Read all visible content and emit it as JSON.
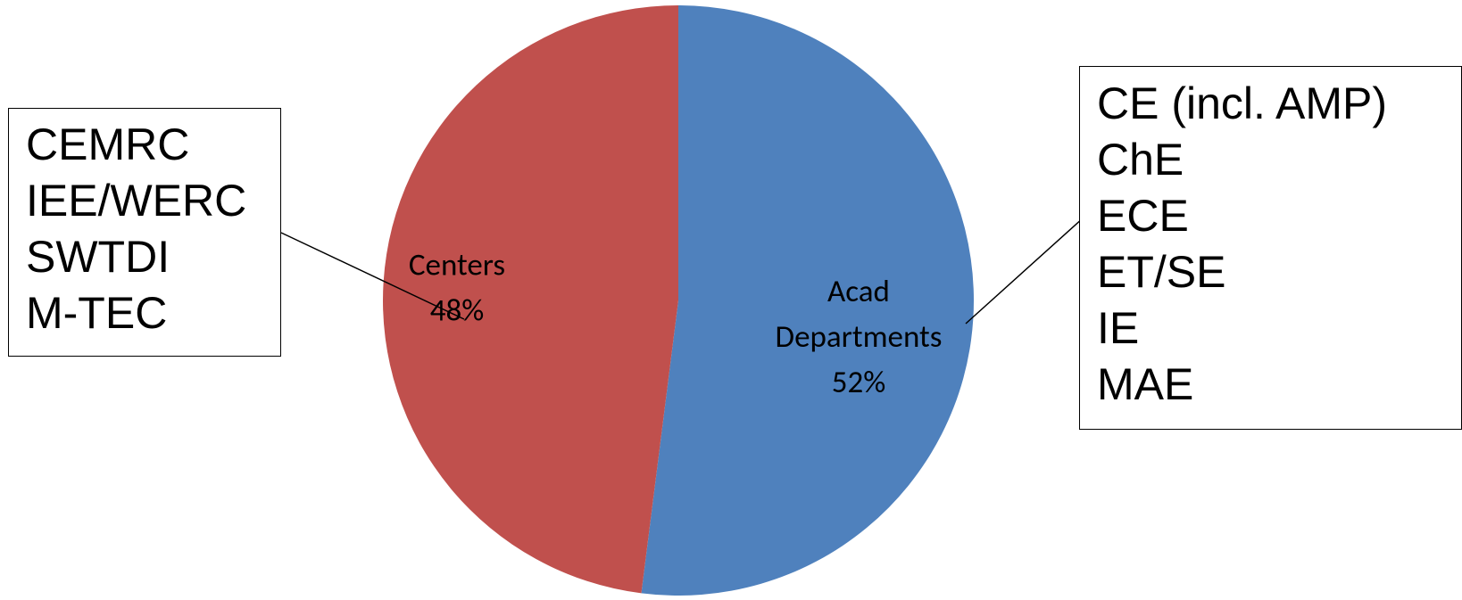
{
  "chart_data": {
    "type": "pie",
    "categories": [
      "Acad Departments",
      "Centers"
    ],
    "values": [
      52,
      48
    ],
    "value_unit": "%",
    "slices": [
      {
        "name": "Acad Departments",
        "value": 52,
        "label_lines": [
          "Acad",
          "Departments",
          "52%"
        ],
        "color": "#4f81bd"
      },
      {
        "name": "Centers",
        "value": 48,
        "label_lines": [
          "Centers",
          "48%"
        ],
        "color": "#c0504d"
      }
    ],
    "legend": "none",
    "start_angle_deg": 0,
    "direction": "clockwise"
  },
  "callouts": {
    "centers": [
      "CEMRC",
      "IEE/WERC",
      "SWTDI",
      "M-TEC"
    ],
    "departments": [
      "CE (incl. AMP)",
      "ChE",
      "ECE",
      "ET/SE",
      "IE",
      "MAE"
    ]
  }
}
